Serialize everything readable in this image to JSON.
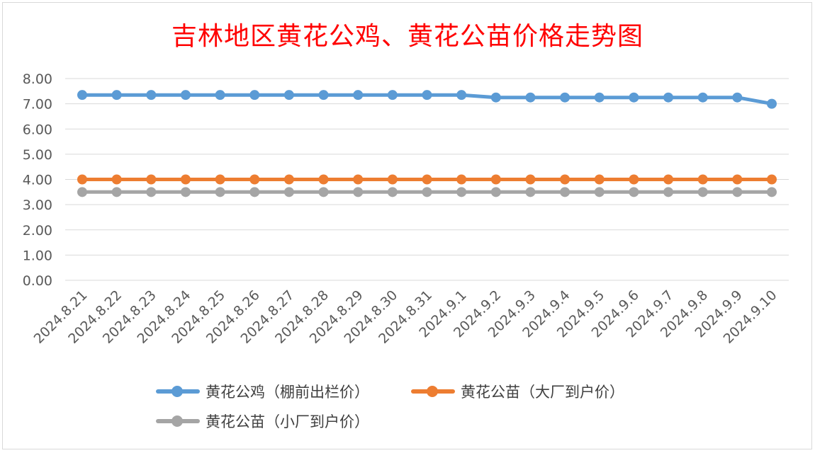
{
  "chart_data": {
    "type": "line",
    "title": "吉林地区黄花公鸡、黄花公苗价格走势图",
    "xlabel": "",
    "ylabel": "",
    "ylim": [
      0,
      8
    ],
    "yticks": [
      "0.00",
      "1.00",
      "2.00",
      "3.00",
      "4.00",
      "5.00",
      "6.00",
      "7.00",
      "8.00"
    ],
    "grid": true,
    "legend_position": "bottom",
    "categories": [
      "2024.8.21",
      "2024.8.22",
      "2024.8.23",
      "2024.8.24",
      "2024.8.25",
      "2024.8.26",
      "2024.8.27",
      "2024.8.28",
      "2024.8.29",
      "2024.8.30",
      "2024.8.31",
      "2024.9.1",
      "2024.9.2",
      "2024.9.3",
      "2024.9.4",
      "2024.9.5",
      "2024.9.6",
      "2024.9.7",
      "2024.9.8",
      "2024.9.9",
      "2024.9.10"
    ],
    "series": [
      {
        "name": "黄花公鸡（棚前出栏价）",
        "color": "#5b9bd5",
        "values": [
          7.35,
          7.35,
          7.35,
          7.35,
          7.35,
          7.35,
          7.35,
          7.35,
          7.35,
          7.35,
          7.35,
          7.35,
          7.25,
          7.25,
          7.25,
          7.25,
          7.25,
          7.25,
          7.25,
          7.25,
          7.0
        ]
      },
      {
        "name": "黄花公苗（大厂到户价）",
        "color": "#ed7d31",
        "values": [
          4.0,
          4.0,
          4.0,
          4.0,
          4.0,
          4.0,
          4.0,
          4.0,
          4.0,
          4.0,
          4.0,
          4.0,
          4.0,
          4.0,
          4.0,
          4.0,
          4.0,
          4.0,
          4.0,
          4.0,
          4.0
        ]
      },
      {
        "name": "黄花公苗（小厂到户价）",
        "color": "#a5a5a5",
        "values": [
          3.5,
          3.5,
          3.5,
          3.5,
          3.5,
          3.5,
          3.5,
          3.5,
          3.5,
          3.5,
          3.5,
          3.5,
          3.5,
          3.5,
          3.5,
          3.5,
          3.5,
          3.5,
          3.5,
          3.5,
          3.5
        ]
      }
    ]
  }
}
